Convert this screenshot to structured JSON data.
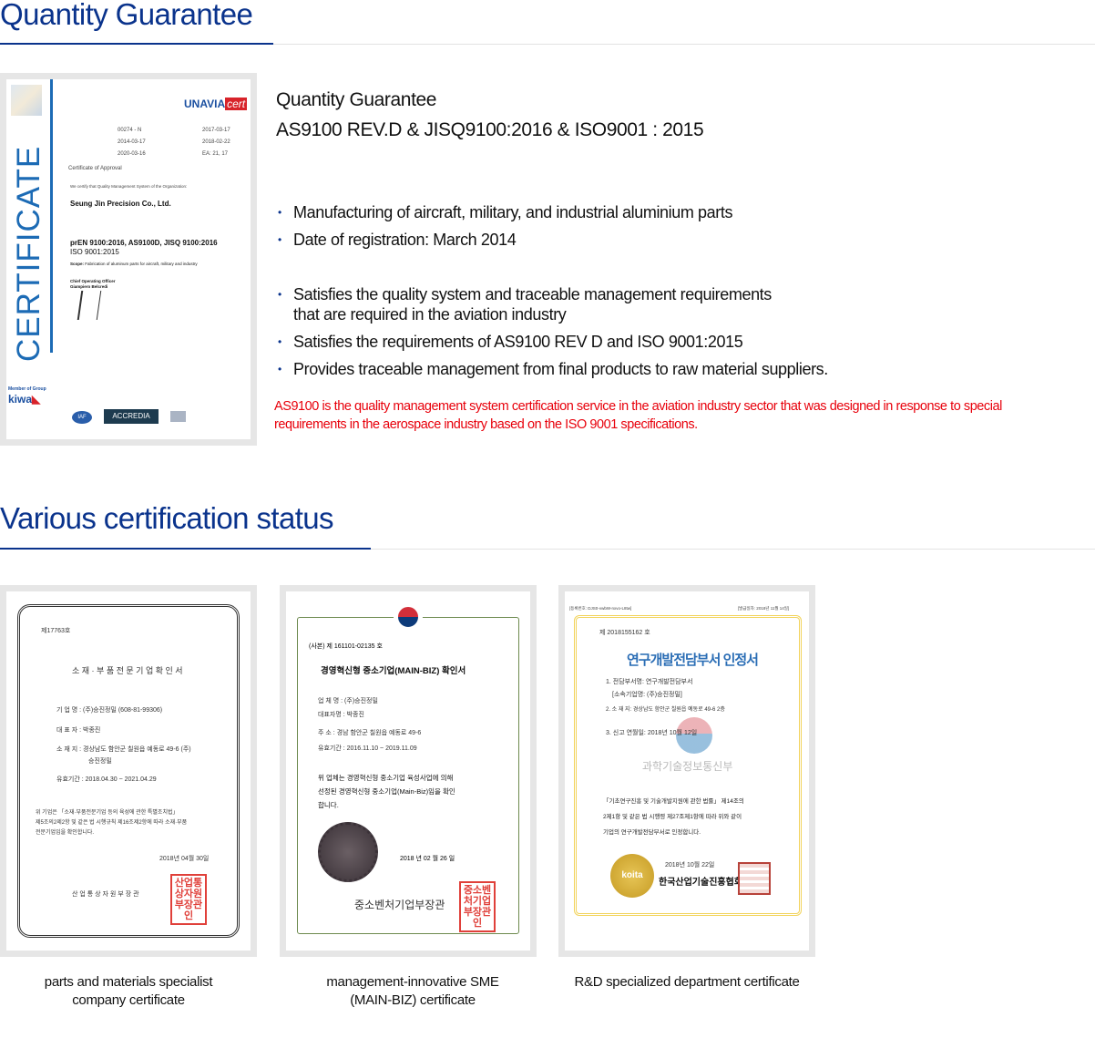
{
  "section1": {
    "title": "Quantity Guarantee",
    "subtitle": "Quantity Guarantee",
    "standards": "AS9100 REV.D & JISQ9100:2016 & ISO9001 : 2015",
    "bullets_a": [
      "Manufacturing of aircraft, military, and industrial aluminium parts",
      "Date of registration: March 2014"
    ],
    "bullets_b": [
      "Satisfies the quality system and traceable management requirements that are required in the aviation industry",
      "Satisfies the requirements of AS9100 REV D and ISO 9001:2015",
      "Provides traceable management from final products to raw material suppliers."
    ],
    "bullet_b0_line1": "Satisfies the quality system and traceable management requirements",
    "bullet_b0_line2": "that are required in the aviation industry",
    "note": "AS9100 is the quality management system certification service in the aviation industry sector that was designed in response to special requirements in the aerospace industry based on the ISO 9001 specifications.",
    "note_color": "#e8000b",
    "certificate": {
      "side_word": "CERTIFICATE",
      "brand": "UNAVIA",
      "brand_suffix": "cert",
      "fields": [
        [
          "00274 - N",
          "2017-03-17"
        ],
        [
          "2014-03-17",
          "2018-02-22"
        ],
        [
          "2020-03-16",
          "EA: 21, 17"
        ]
      ],
      "approval": "Certificate of Approval",
      "we_certify": "We certify that Quality Management System of the Organization:",
      "company": "Seung Jin Precision Co., Ltd.",
      "standards_bold": "prEN 9100:2016, AS9100D, JISQ 9100:2016",
      "standards_plain": "ISO 9001:2015",
      "scope_label": "Scope:",
      "scope": "Fabrication of aluminum parts for aircraft, military and industry",
      "officer_title": "Chief Operating Officer",
      "officer_name": "Giampiero Belcredi",
      "member": "Member of Group",
      "kiwa": "kiwa",
      "iaf": "IAF",
      "accredia": "ACCREDIA"
    }
  },
  "section2": {
    "title": "Various certification status",
    "cards": [
      {
        "caption_l1": "parts and materials specialist",
        "caption_l2": "company certificate",
        "doc": {
          "number": "제17763호",
          "title": "소 재 · 부 품 전 문 기 업 확 인 서",
          "lines": [
            "기 업 명 : (주)승진정밀 (608-81-99306)",
            "대 표 자 : 박종진",
            "소 재 지 : 경상남도 함안군 칠원읍 예동로 49-6 (주)",
            "승진정밀",
            "유효기간 : 2018.04.30 ~ 2021.04.29"
          ],
          "body": [
            "위 기업은 「소재·부품전문기업 등의 육성에 관한 특별조치법」",
            "제5조의2제2항 및 같은 법 시행규칙 제16조제2항에 따라 소재·부품",
            "전문기업임을 확인합니다."
          ],
          "date": "2018년 04월 30일",
          "issuer": "산 업 통 상 자 원 부 장 관",
          "seal": "산업통상자원부장관인"
        }
      },
      {
        "caption_l1": "management-innovative SME",
        "caption_l2": "(MAIN-BIZ) certificate",
        "doc": {
          "number": "(사본) 제 161101-02135 호",
          "title": "경영혁신형 중소기업(MAIN-BIZ) 확인서",
          "lines": [
            "업 체 명 : (주)승진정밀",
            "대표자명 : 박종진",
            "주 소 : 경남 함안군 칠원읍 예동로 49-6",
            "유효기간 : 2016.11.10 ~ 2019.11.09"
          ],
          "body": [
            "위 업체는 경영혁신형 중소기업 육성사업에 의해",
            "선정된 경영혁신형 중소기업(Main-Biz)임을 확인",
            "합니다."
          ],
          "date": "2018 년 02 월 26 일",
          "issuer": "중소벤처기업부장관",
          "seal": "중소벤처기업부장관인",
          "watermark": "사본"
        }
      },
      {
        "caption_l1": "R&D specialized department certificate",
        "caption_l2": "",
        "doc": {
          "header_left": "[등록번호: DJS0-vwbW-nxvo-L8tw]",
          "header_right": "[발급일자: 2018년 11월 14일]",
          "number": "제 2018155162 호",
          "title": "연구개발전담부서 인정서",
          "lines": [
            "1. 전담부서명: 연구개발전담부서",
            "[소속기업명: (주)승진정밀]",
            "2. 소 재 지: 경상남도 함안군 칠원읍 예동로 49-6 2층",
            "3. 신고 연월일: 2018년 10월 12일"
          ],
          "ministry": "과학기술정보통신부",
          "body": [
            "「기초연구진흥 및 기술개발지원에 관한 법률」 제14조의",
            "2제1항 및 같은 법 시행령 제27조제1항에 따라 위와 같이",
            "기업의 연구개발전담부서로 인정합니다."
          ],
          "date": "2018년 10월 22일",
          "issuer": "한국산업기술진흥협회장",
          "badge": "koita"
        }
      }
    ]
  },
  "colors": {
    "accent": "#0a338c",
    "frame": "#e6e6e6"
  }
}
